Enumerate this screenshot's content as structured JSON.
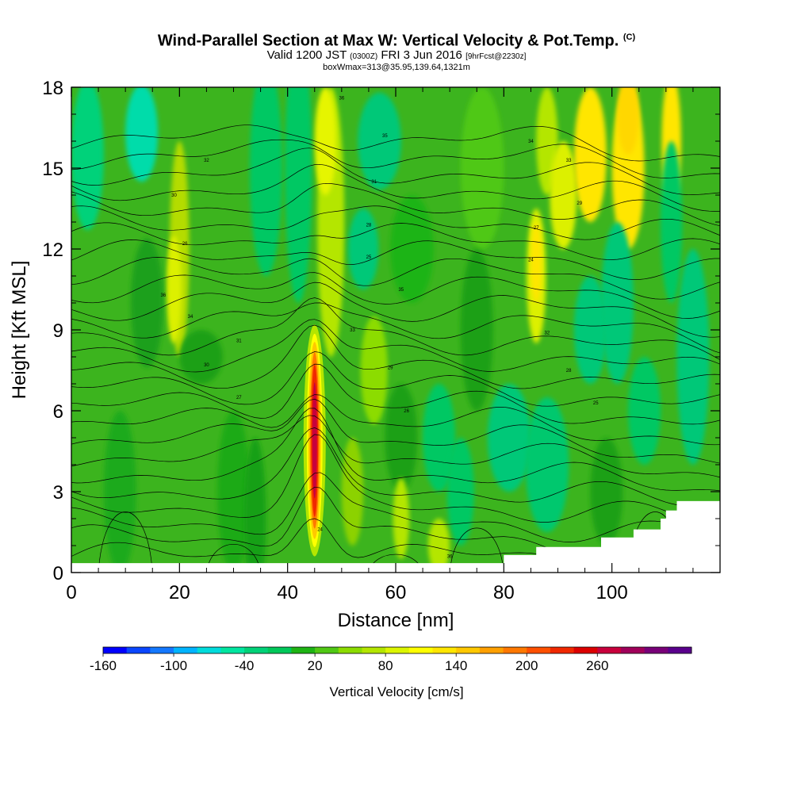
{
  "header": {
    "title": "Wind-Parallel Section at Max W: Vertical Velocity & Pot.Temp.",
    "title_mark": "(C)",
    "valid_prefix": "Valid 1200 JST",
    "valid_utc": "(0300Z)",
    "valid_date": "FRI 3 Jun 2016",
    "forecast": "[9hrFcst@2230z]",
    "boxwmax": "boxWmax=313@35.95,139.64,1321m"
  },
  "chart_data": {
    "type": "heatmap",
    "xlabel": "Distance [nm]",
    "ylabel": "Height [Kft MSL]",
    "xlim": [
      0,
      120
    ],
    "ylim": [
      0,
      18
    ],
    "x_ticks": [
      0,
      20,
      40,
      60,
      80,
      100
    ],
    "y_ticks": [
      0,
      3,
      6,
      9,
      12,
      15,
      18
    ],
    "colorbar": {
      "label": "Vertical Velocity [cm/s]",
      "tick_labels": [
        "-160",
        "-100",
        "-40",
        "20",
        "80",
        "140",
        "200",
        "260"
      ],
      "tick_values": [
        -160,
        -100,
        -40,
        20,
        80,
        140,
        200,
        260
      ],
      "colors": [
        "#0000ff",
        "#0a46ff",
        "#1478ff",
        "#00b4ff",
        "#00dcdc",
        "#00e6a0",
        "#00d278",
        "#00c85a",
        "#1eb414",
        "#50c814",
        "#8cdc00",
        "#b4e600",
        "#dcf500",
        "#ffff00",
        "#ffe600",
        "#ffc800",
        "#ffa000",
        "#ff7800",
        "#ff5000",
        "#f02800",
        "#dc0000",
        "#c8003c",
        "#a0005a",
        "#780078",
        "#5a008c"
      ]
    },
    "max_updraft": {
      "x": 45,
      "y_range": [
        0.6,
        9.2
      ],
      "peak": 313
    },
    "theta_contour_labels": [
      "36",
      "35",
      "34",
      "33",
      "32",
      "31",
      "30",
      "29",
      "28",
      "27",
      "26",
      "25",
      "24"
    ],
    "terrain": [
      [
        0,
        0.35
      ],
      [
        80,
        0.35
      ],
      [
        80,
        0.65
      ],
      [
        86,
        0.65
      ],
      [
        86,
        0.95
      ],
      [
        98,
        0.95
      ],
      [
        98,
        1.3
      ],
      [
        104,
        1.3
      ],
      [
        104,
        1.6
      ],
      [
        109,
        1.6
      ],
      [
        109,
        2
      ],
      [
        110,
        2
      ],
      [
        110,
        2.3
      ],
      [
        112,
        2.3
      ],
      [
        112,
        2.65
      ],
      [
        120,
        2.65
      ]
    ]
  }
}
